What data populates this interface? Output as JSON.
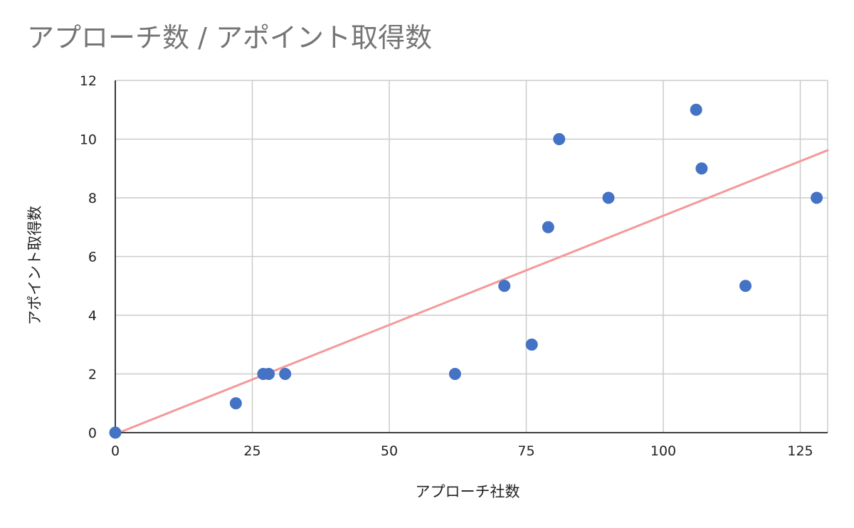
{
  "chart_data": {
    "type": "scatter",
    "title": "アプローチ数 / アポイント取得数",
    "xlabel": "アプローチ社数",
    "ylabel": "アポイント取得数",
    "xlim": [
      0,
      130
    ],
    "ylim": [
      0,
      12
    ],
    "x_ticks": [
      "0",
      "25",
      "50",
      "75",
      "100",
      "125"
    ],
    "y_ticks": [
      "0",
      "2",
      "4",
      "6",
      "8",
      "10",
      "12"
    ],
    "grid": true,
    "legend": "none",
    "series": [
      {
        "color": "#4472c4",
        "points": [
          {
            "x": 0,
            "y": 0
          },
          {
            "x": 22,
            "y": 1
          },
          {
            "x": 27,
            "y": 2
          },
          {
            "x": 28,
            "y": 2
          },
          {
            "x": 31,
            "y": 2
          },
          {
            "x": 62,
            "y": 2
          },
          {
            "x": 71,
            "y": 5
          },
          {
            "x": 76,
            "y": 3
          },
          {
            "x": 79,
            "y": 7
          },
          {
            "x": 81,
            "y": 10
          },
          {
            "x": 90,
            "y": 8
          },
          {
            "x": 106,
            "y": 11
          },
          {
            "x": 107,
            "y": 9
          },
          {
            "x": 115,
            "y": 5
          },
          {
            "x": 128,
            "y": 8
          }
        ]
      }
    ],
    "trendline": {
      "type": "linear",
      "color": "#f4999a",
      "points": [
        {
          "x": 0,
          "y": -0.05
        },
        {
          "x": 130,
          "y": 9.62
        }
      ]
    }
  }
}
